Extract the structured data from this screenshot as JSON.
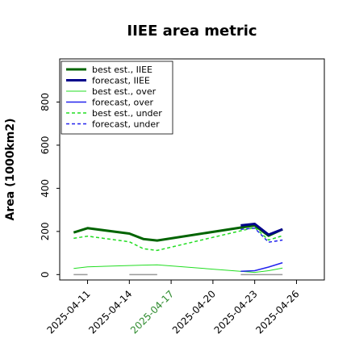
{
  "chart_data": {
    "type": "line",
    "title": "IIEE area metric",
    "xlabel": "",
    "ylabel": "Area (1000km2)",
    "ylim": [
      -25,
      1000
    ],
    "yticks": [
      0,
      200,
      400,
      600,
      800
    ],
    "xlim": [
      "2025-04-09",
      "2025-04-28"
    ],
    "xticks": [
      {
        "date": "2025-04-11",
        "label": "2025-04-11",
        "color": "#000000"
      },
      {
        "date": "2025-04-14",
        "label": "2025-04-14",
        "color": "#000000"
      },
      {
        "date": "2025-04-17",
        "label": "2025-04-17",
        "color": "#2e8b2e"
      },
      {
        "date": "2025-04-20",
        "label": "2025-04-20",
        "color": "#000000"
      },
      {
        "date": "2025-04-23",
        "label": "2025-04-23",
        "color": "#000000"
      },
      {
        "date": "2025-04-26",
        "label": "2025-04-26",
        "color": "#000000"
      }
    ],
    "legend_position": "top-left",
    "grid": false,
    "series": [
      {
        "name": "best est., IIEE",
        "color": "#006400",
        "style": "solid",
        "width": 3,
        "x": [
          "2025-04-10",
          "2025-04-11",
          "2025-04-14",
          "2025-04-15",
          "2025-04-16",
          "2025-04-23",
          "2025-04-24",
          "2025-04-25"
        ],
        "y": [
          195,
          215,
          190,
          165,
          158,
          228,
          180,
          210
        ]
      },
      {
        "name": "forecast, IIEE",
        "color": "#00008b",
        "style": "solid",
        "width": 3,
        "x": [
          "2025-04-22",
          "2025-04-23",
          "2025-04-24",
          "2025-04-25"
        ],
        "y": [
          228,
          235,
          185,
          210
        ]
      },
      {
        "name": "best est., over",
        "color": "#22dd22",
        "style": "solid",
        "width": 1,
        "x": [
          "2025-04-10",
          "2025-04-11",
          "2025-04-14",
          "2025-04-15",
          "2025-04-16",
          "2025-04-23",
          "2025-04-24",
          "2025-04-25"
        ],
        "y": [
          28,
          36,
          42,
          44,
          45,
          10,
          18,
          30
        ]
      },
      {
        "name": "forecast, over",
        "color": "#2222ee",
        "style": "solid",
        "width": 1.5,
        "x": [
          "2025-04-22",
          "2025-04-23",
          "2025-04-24",
          "2025-04-25"
        ],
        "y": [
          15,
          18,
          35,
          55
        ]
      },
      {
        "name": "best est., under",
        "color": "#22dd22",
        "style": "dashed",
        "width": 1.5,
        "x": [
          "2025-04-10",
          "2025-04-11",
          "2025-04-14",
          "2025-04-15",
          "2025-04-16",
          "2025-04-23",
          "2025-04-24",
          "2025-04-25"
        ],
        "y": [
          168,
          178,
          152,
          120,
          112,
          218,
          160,
          180
        ]
      },
      {
        "name": "forecast, under",
        "color": "#2222ee",
        "style": "dashed",
        "width": 1.5,
        "x": [
          "2025-04-22",
          "2025-04-23",
          "2025-04-24",
          "2025-04-25"
        ],
        "y": [
          210,
          215,
          150,
          160
        ]
      }
    ],
    "reference_segments": [
      {
        "color": "#999999",
        "x": [
          "2025-04-10",
          "2025-04-11"
        ],
        "y": [
          0,
          0
        ]
      },
      {
        "color": "#999999",
        "x": [
          "2025-04-14",
          "2025-04-16"
        ],
        "y": [
          0,
          0
        ]
      },
      {
        "color": "#999999",
        "x": [
          "2025-04-22",
          "2025-04-25"
        ],
        "y": [
          0,
          0
        ]
      }
    ]
  }
}
